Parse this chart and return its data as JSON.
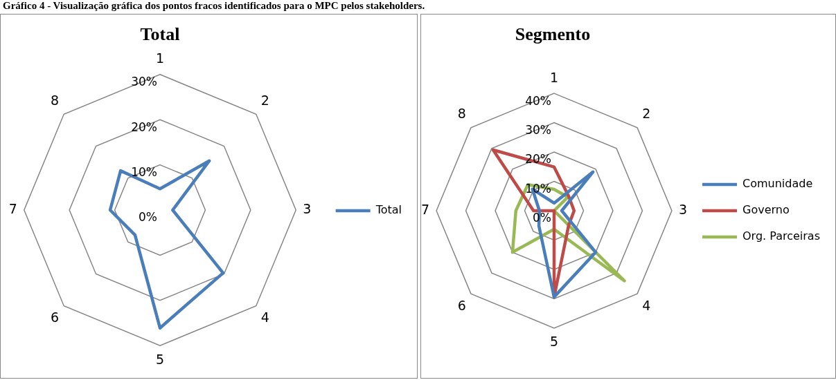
{
  "chart_data": [
    {
      "type": "radar",
      "title": "Total",
      "annotations": [
        "Gráfico 4 - Visualização gráfica dos pontos fracos identificados para o MPC pelos stakeholders."
      ],
      "categories": [
        "1",
        "2",
        "3",
        "4",
        "5",
        "6",
        "7",
        "8"
      ],
      "series": [
        {
          "name": "Total",
          "color": "#4a7ebb",
          "values": [
            4.7,
            15.4,
            2.8,
            19.7,
            26.1,
            7.8,
            11,
            12.3
          ]
        }
      ],
      "ylim": [
        0,
        30
      ],
      "yticks": [
        {
          "value": 0,
          "label": "0%"
        },
        {
          "value": 10,
          "label": "10%"
        },
        {
          "value": 20,
          "label": "20%"
        },
        {
          "value": 30,
          "label": "30%"
        }
      ],
      "grid": true,
      "legend": "right",
      "marker": "none"
    },
    {
      "type": "radar",
      "title": "Segmento",
      "categories": [
        "1",
        "2",
        "3",
        "4",
        "5",
        "6",
        "7",
        "8"
      ],
      "series": [
        {
          "name": "Comunidade",
          "color": "#4a7ebb",
          "values": [
            2.6,
            18.7,
            2.6,
            20,
            29.4,
            7.3,
            5,
            10.4
          ]
        },
        {
          "name": "Governo",
          "color": "#be4b48",
          "values": [
            14.9,
            7,
            6.8,
            7,
            29.4,
            0,
            7,
            29.3
          ]
        },
        {
          "name": "Org. Parceiras",
          "color": "#98b954",
          "values": [
            7.3,
            6.6,
            0,
            33.8,
            6.3,
            20,
            13,
            12.6
          ]
        }
      ],
      "ylim": [
        0,
        40
      ],
      "yticks": [
        {
          "value": 0,
          "label": "0%"
        },
        {
          "value": 10,
          "label": "10%"
        },
        {
          "value": 20,
          "label": "20%"
        },
        {
          "value": 30,
          "label": "30%"
        },
        {
          "value": 40,
          "label": "40%"
        }
      ],
      "grid": true,
      "legend": "right",
      "marker": "none"
    }
  ]
}
